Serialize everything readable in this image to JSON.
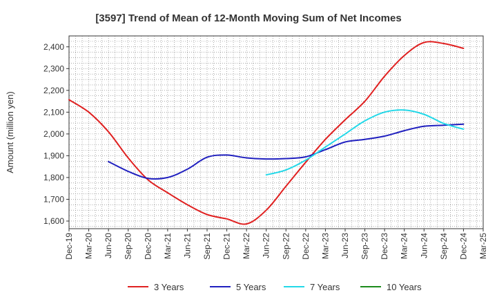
{
  "chart_data": {
    "type": "line",
    "title": "[3597]  Trend of Mean of 12-Month Moving Sum of Net Incomes",
    "ylabel": "Amount (million yen)",
    "xlabel": "",
    "ylim": [
      1565,
      2450
    ],
    "y_ticks": [
      1600,
      1700,
      1800,
      1900,
      2000,
      2100,
      2200,
      2300,
      2400
    ],
    "y_tick_labels": [
      "1,600",
      "1,700",
      "1,800",
      "1,900",
      "2,000",
      "2,100",
      "2,200",
      "2,300",
      "2,400"
    ],
    "x_tick_labels": [
      "Dec-19",
      "Mar-20",
      "Jun-20",
      "Sep-20",
      "Dec-20",
      "Mar-21",
      "Jun-21",
      "Sep-21",
      "Dec-21",
      "Mar-22",
      "Jun-22",
      "Sep-22",
      "Dec-22",
      "Mar-23",
      "Jun-23",
      "Sep-23",
      "Dec-23",
      "Mar-24",
      "Jun-24",
      "Sep-24",
      "Dec-24",
      "Mar-25"
    ],
    "grid": true,
    "legend_position": "bottom",
    "series": [
      {
        "name": "3 Years",
        "color": "#e02020",
        "x": [
          "Dec-19",
          "Mar-20",
          "Jun-20",
          "Sep-20",
          "Dec-20",
          "Mar-21",
          "Jun-21",
          "Sep-21",
          "Dec-21",
          "Mar-22",
          "Jun-22",
          "Sep-22",
          "Dec-22",
          "Mar-23",
          "Jun-23",
          "Sep-23",
          "Dec-23",
          "Mar-24",
          "Jun-24",
          "Sep-24",
          "Dec-24"
        ],
        "values": [
          2157,
          2100,
          2010,
          1890,
          1790,
          1730,
          1675,
          1630,
          1610,
          1587,
          1650,
          1760,
          1870,
          1975,
          2065,
          2150,
          2265,
          2360,
          2420,
          2415,
          2393
        ]
      },
      {
        "name": "5 Years",
        "color": "#1f1fbf",
        "x": [
          "Jun-20",
          "Sep-20",
          "Dec-20",
          "Mar-21",
          "Jun-21",
          "Sep-21",
          "Dec-21",
          "Mar-22",
          "Jun-22",
          "Sep-22",
          "Dec-22",
          "Mar-23",
          "Jun-23",
          "Sep-23",
          "Dec-23",
          "Mar-24",
          "Jun-24",
          "Sep-24",
          "Dec-24"
        ],
        "values": [
          1873,
          1828,
          1796,
          1800,
          1838,
          1893,
          1903,
          1890,
          1885,
          1887,
          1895,
          1928,
          1963,
          1975,
          1990,
          2015,
          2035,
          2040,
          2045
        ]
      },
      {
        "name": "7 Years",
        "color": "#22d8e8",
        "x": [
          "Jun-22",
          "Sep-22",
          "Dec-22",
          "Mar-23",
          "Jun-23",
          "Sep-23",
          "Dec-23",
          "Mar-24",
          "Jun-24",
          "Sep-24",
          "Dec-24"
        ],
        "values": [
          1812,
          1835,
          1880,
          1940,
          2000,
          2060,
          2100,
          2110,
          2090,
          2048,
          2022
        ]
      },
      {
        "name": "10 Years",
        "color": "#1a8a1a",
        "x": [],
        "values": []
      }
    ]
  }
}
